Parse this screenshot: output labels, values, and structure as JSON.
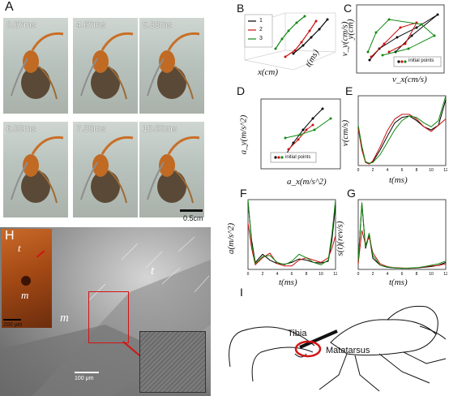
{
  "panel_letters": {
    "A": "A",
    "B": "B",
    "C": "C",
    "D": "D",
    "E": "E",
    "F": "F",
    "G": "G",
    "H": "H",
    "I": "I"
  },
  "panel_a": {
    "frames": [
      "0.67ms",
      "4.67ms",
      "5.33ms",
      "6.00ms",
      "7.33ms",
      "10.00ms"
    ],
    "scale_label": "0.5cm"
  },
  "panel_b": {
    "legend": [
      "1",
      "2",
      "3"
    ],
    "xlabel": "x(cm)",
    "ylabel": "y(cm)",
    "tlabel": "t(ms)"
  },
  "panel_c": {
    "xlabel": "v_x(cm/s)",
    "ylabel": "v_y(cm/s)",
    "legend": "initial points"
  },
  "panel_d": {
    "xlabel": "a_x(m/s^2)",
    "ylabel": "a_y(m/s^2)",
    "legend": "initial points"
  },
  "panel_e": {
    "ylabel": "v(cm/s)",
    "xlabel": "t(ms)"
  },
  "panel_f": {
    "ylabel": "a(m/s^2)",
    "xlabel": "t(ms)"
  },
  "panel_g": {
    "ylabel": "s(t)(rev/s)",
    "xlabel": "t(ms)"
  },
  "panel_h": {
    "labels": {
      "t1": "t",
      "m1": "m",
      "t2": "t",
      "m2": "m"
    },
    "scale1": "200 μm",
    "scale2": "100 μm"
  },
  "panel_i": {
    "tibia": "Tibia",
    "metatarsus": "Matatarsus"
  },
  "colors": {
    "series1": "#000000",
    "series2": "#cc1111",
    "series3": "#118811",
    "red_box": "#d21414"
  },
  "chart_data": [
    {
      "type": "line",
      "title": "",
      "xlabel": "t(ms)",
      "ylabel": "v(cm/s)",
      "xlim": [
        0,
        12
      ],
      "ylim": [
        0,
        90
      ],
      "x": [
        0,
        0.5,
        1,
        1.5,
        2,
        3,
        4,
        5,
        6,
        7,
        8,
        9,
        10,
        11,
        12
      ],
      "series": [
        {
          "name": "",
          "color": "black",
          "values": [
            50,
            22,
            4,
            2,
            5,
            20,
            38,
            55,
            62,
            64,
            58,
            50,
            46,
            52,
            85
          ]
        },
        {
          "name": "",
          "color": "red",
          "values": [
            48,
            20,
            4,
            2,
            6,
            24,
            45,
            60,
            66,
            66,
            60,
            50,
            44,
            52,
            60
          ]
        },
        {
          "name": "",
          "color": "green",
          "values": [
            52,
            25,
            5,
            3,
            4,
            14,
            30,
            46,
            58,
            64,
            62,
            55,
            50,
            58,
            90
          ]
        }
      ]
    },
    {
      "type": "line",
      "title": "",
      "xlabel": "t(ms)",
      "ylabel": "a(m/s^2)",
      "xlim": [
        0,
        12
      ],
      "ylim": [
        0,
        600
      ],
      "x": [
        0,
        0.5,
        1,
        2,
        3,
        4,
        5,
        6,
        7,
        8,
        9,
        10,
        11,
        11.5,
        12
      ],
      "series": [
        {
          "name": "",
          "color": "black",
          "values": [
            580,
            250,
            60,
            130,
            80,
            50,
            45,
            60,
            90,
            80,
            60,
            55,
            70,
            250,
            550
          ]
        },
        {
          "name": "",
          "color": "red",
          "values": [
            400,
            180,
            40,
            100,
            140,
            50,
            30,
            30,
            80,
            100,
            80,
            60,
            100,
            180,
            290
          ]
        },
        {
          "name": "",
          "color": "green",
          "values": [
            600,
            220,
            50,
            110,
            120,
            60,
            40,
            70,
            130,
            100,
            60,
            40,
            80,
            300,
            600
          ]
        }
      ]
    },
    {
      "type": "line",
      "title": "",
      "xlabel": "t(ms)",
      "ylabel": "s(t)(rev/s)",
      "xlim": [
        0,
        12
      ],
      "ylim": [
        0,
        500
      ],
      "x": [
        0,
        0.5,
        1,
        1.5,
        2,
        3,
        4,
        5,
        6,
        7,
        8,
        9,
        10,
        11,
        12
      ],
      "series": [
        {
          "name": "",
          "color": "black",
          "values": [
            50,
            470,
            150,
            250,
            80,
            30,
            15,
            10,
            8,
            8,
            10,
            15,
            20,
            30,
            50
          ]
        },
        {
          "name": "",
          "color": "red",
          "values": [
            40,
            280,
            180,
            230,
            120,
            40,
            20,
            12,
            10,
            8,
            12,
            18,
            25,
            28,
            40
          ]
        },
        {
          "name": "",
          "color": "green",
          "values": [
            60,
            480,
            160,
            260,
            100,
            30,
            18,
            10,
            8,
            10,
            12,
            20,
            30,
            40,
            60
          ]
        }
      ]
    }
  ]
}
